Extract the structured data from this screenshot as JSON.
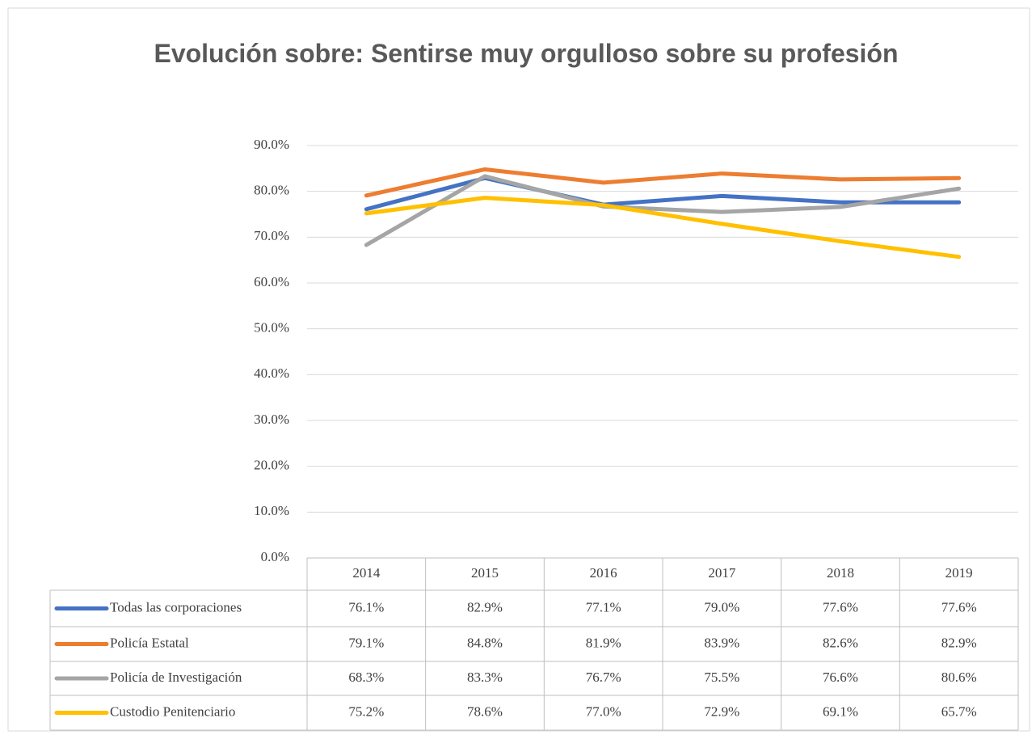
{
  "chart_data": {
    "type": "line",
    "title": "Evolución sobre: Sentirse muy orgulloso sobre su profesión",
    "categories": [
      "2014",
      "2015",
      "2016",
      "2017",
      "2018",
      "2019"
    ],
    "series": [
      {
        "name": "Todas las corporaciones",
        "color": "#4472c4",
        "values": [
          76.1,
          82.9,
          77.1,
          79.0,
          77.6,
          77.6
        ],
        "value_labels": [
          "76.1%",
          "82.9%",
          "77.1%",
          "79.0%",
          "77.6%",
          "77.6%"
        ]
      },
      {
        "name": "Policía Estatal",
        "color": "#ed7d31",
        "values": [
          79.1,
          84.8,
          81.9,
          83.9,
          82.6,
          82.9
        ],
        "value_labels": [
          "79.1%",
          "84.8%",
          "81.9%",
          "83.9%",
          "82.6%",
          "82.9%"
        ]
      },
      {
        "name": "Policía de Investigación",
        "color": "#a5a5a5",
        "values": [
          68.3,
          83.3,
          76.7,
          75.5,
          76.6,
          80.6
        ],
        "value_labels": [
          "68.3%",
          "83.3%",
          "76.7%",
          "75.5%",
          "76.6%",
          "80.6%"
        ]
      },
      {
        "name": "Custodio Penitenciario",
        "color": "#ffc000",
        "values": [
          75.2,
          78.6,
          77.0,
          72.9,
          69.1,
          65.7
        ],
        "value_labels": [
          "75.2%",
          "78.6%",
          "77.0%",
          "72.9%",
          "69.1%",
          "65.7%"
        ]
      }
    ],
    "ylim": [
      0,
      90
    ],
    "yticks": [
      {
        "value": 0,
        "label": "0.0%"
      },
      {
        "value": 10,
        "label": "10.0%"
      },
      {
        "value": 20,
        "label": "20.0%"
      },
      {
        "value": 30,
        "label": "30.0%"
      },
      {
        "value": 40,
        "label": "40.0%"
      },
      {
        "value": 50,
        "label": "50.0%"
      },
      {
        "value": 60,
        "label": "60.0%"
      },
      {
        "value": 70,
        "label": "70.0%"
      },
      {
        "value": 80,
        "label": "80.0%"
      },
      {
        "value": 90,
        "label": "90.0%"
      }
    ],
    "grid": true
  }
}
